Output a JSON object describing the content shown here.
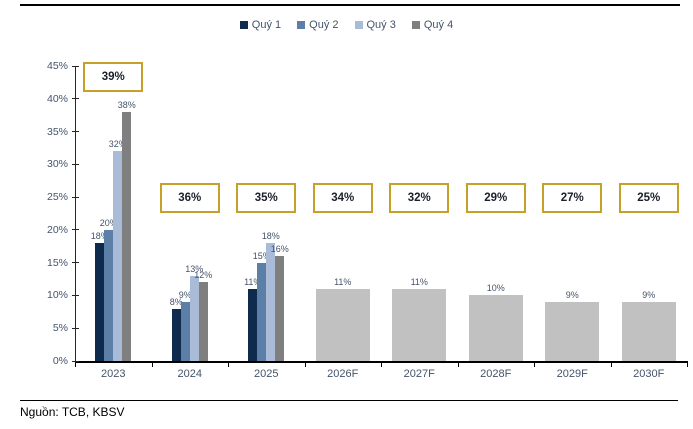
{
  "legend": [
    {
      "label": "Quý 1",
      "color": "#0E2B4D"
    },
    {
      "label": "Quý 2",
      "color": "#5C7FA8"
    },
    {
      "label": "Quý 3",
      "color": "#A9BBD6"
    },
    {
      "label": "Quý 4",
      "color": "#7F7F7F"
    }
  ],
  "chart_data": {
    "type": "bar",
    "title": "",
    "xlabel": "",
    "ylabel": "",
    "ylim": [
      0,
      45
    ],
    "ytick_step": 5,
    "ytick_labels": [
      "0%",
      "5%",
      "10%",
      "15%",
      "20%",
      "25%",
      "30%",
      "35%",
      "40%",
      "45%"
    ],
    "grid": false,
    "legend_position": "top-center",
    "categories": [
      "2023",
      "2024",
      "2025",
      "2026F",
      "2027F",
      "2028F",
      "2029F",
      "2030F"
    ],
    "series": [
      {
        "name": "Quý 1",
        "color": "#0E2B4D",
        "values": [
          18,
          8,
          11,
          null,
          null,
          null,
          null,
          null
        ],
        "labels": [
          "18%",
          "8%",
          "11%",
          null,
          null,
          null,
          null,
          null
        ]
      },
      {
        "name": "Quý 2",
        "color": "#5C7FA8",
        "values": [
          20,
          9,
          15,
          null,
          null,
          null,
          null,
          null
        ],
        "labels": [
          "20%",
          "9%",
          "15%",
          null,
          null,
          null,
          null,
          null
        ]
      },
      {
        "name": "Quý 3",
        "color": "#A9BBD6",
        "values": [
          32,
          13,
          18,
          null,
          null,
          null,
          null,
          null
        ],
        "labels": [
          "32%",
          "13%",
          "18%",
          null,
          null,
          null,
          null,
          null
        ]
      },
      {
        "name": "Quý 4",
        "color": "#7F7F7F",
        "values": [
          38,
          12,
          16,
          null,
          null,
          null,
          null,
          null
        ],
        "labels": [
          "38%",
          "12%",
          "16%",
          null,
          null,
          null,
          null,
          null
        ]
      }
    ],
    "forecast": {
      "name": "Forecast total",
      "color": "#C1C1C1",
      "values": [
        null,
        null,
        null,
        11,
        11,
        10,
        9,
        9
      ],
      "labels": [
        null,
        null,
        null,
        "11%",
        "11%",
        "10%",
        "9%",
        "9%"
      ]
    },
    "annotations": [
      {
        "category": "2023",
        "value": 39,
        "label": "39%"
      },
      {
        "category": "2024",
        "value": 36,
        "label": "36%"
      },
      {
        "category": "2025",
        "value": 35,
        "label": "35%"
      },
      {
        "category": "2026F",
        "value": 34,
        "label": "34%"
      },
      {
        "category": "2027F",
        "value": 32,
        "label": "32%"
      },
      {
        "category": "2028F",
        "value": 29,
        "label": "29%"
      },
      {
        "category": "2029F",
        "value": 27,
        "label": "27%"
      },
      {
        "category": "2030F",
        "value": 25,
        "label": "25%"
      }
    ],
    "annotation_box_color": "#C7A02A"
  },
  "footer": {
    "source": "Nguồn: TCB, KBSV"
  }
}
